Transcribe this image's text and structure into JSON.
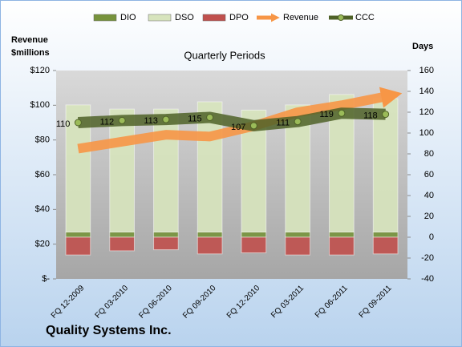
{
  "chart_data": {
    "type": "combo",
    "title": "Quarterly Periods",
    "y_label": "Revenue\n$millions",
    "y2_label": "Days",
    "footer": "Quality Systems Inc.",
    "categories": [
      "FQ 12-2009",
      "FQ 03-2010",
      "FQ 06-2010",
      "FQ 09-2010",
      "FQ 12-2010",
      "FQ 03-2011",
      "FQ 06-2011",
      "FQ 09-2011"
    ],
    "series": [
      {
        "name": "DIO",
        "type": "bar",
        "axis": "y2",
        "color": "#77933c",
        "values": [
          5,
          5,
          5,
          5,
          5,
          5,
          5,
          5
        ]
      },
      {
        "name": "DSO",
        "type": "bar",
        "axis": "y2",
        "color": "#d7e4bd",
        "values": [
          122,
          118,
          118,
          125,
          117,
          122,
          132,
          128
        ]
      },
      {
        "name": "DPO",
        "type": "bar",
        "axis": "y2",
        "color": "#c0504d",
        "values": [
          -17,
          -13,
          -12,
          -16,
          -15,
          -17,
          -17,
          -16
        ]
      },
      {
        "name": "Revenue",
        "type": "arrow",
        "axis": "y",
        "color": "#f79646",
        "values": [
          75,
          79,
          83,
          82,
          88,
          96,
          100,
          105
        ]
      },
      {
        "name": "CCC",
        "type": "line",
        "axis": "y2",
        "color": "#4f6228",
        "values": [
          110,
          112,
          113,
          115,
          107,
          111,
          119,
          118
        ]
      }
    ],
    "ylim": [
      0,
      120
    ],
    "yticks": [
      {
        "value": 0,
        "label": "$-"
      },
      {
        "value": 20,
        "label": "$20"
      },
      {
        "value": 40,
        "label": "$40"
      },
      {
        "value": 60,
        "label": "$60"
      },
      {
        "value": 80,
        "label": "$80"
      },
      {
        "value": 100,
        "label": "$100"
      },
      {
        "value": 120,
        "label": "$120"
      }
    ],
    "y2lim": [
      -40,
      160
    ],
    "y2ticks": [
      -40,
      -20,
      0,
      20,
      40,
      60,
      80,
      100,
      120,
      140,
      160
    ]
  }
}
